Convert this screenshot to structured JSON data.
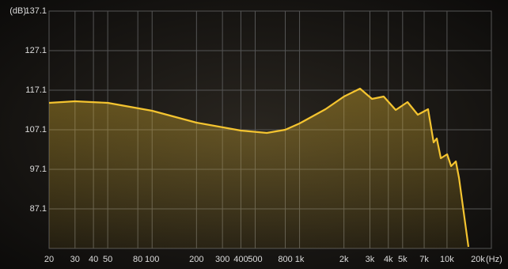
{
  "chart_data": {
    "type": "line",
    "y_unit": "(dB)",
    "x_unit": "(Hz)",
    "log_x": true,
    "grid": true,
    "xlim": [
      20,
      20000
    ],
    "ylim": [
      77.1,
      137.1
    ],
    "yticks": [
      87.1,
      97.1,
      107.1,
      117.1,
      127.1,
      137.1
    ],
    "xticks": [
      20,
      30,
      40,
      50,
      80,
      100,
      200,
      300,
      400,
      500,
      800,
      {
        "value": 1000,
        "label": "1k"
      },
      {
        "value": 2000,
        "label": "2k"
      },
      {
        "value": 3000,
        "label": "3k"
      },
      {
        "value": 4000,
        "label": "4k"
      },
      {
        "value": 5000,
        "label": "5k"
      },
      {
        "value": 7000,
        "label": "7k"
      },
      {
        "value": 10000,
        "label": "10k"
      },
      {
        "value": 20000,
        "label": "20k"
      }
    ],
    "x": [
      20,
      30,
      50,
      100,
      200,
      400,
      600,
      800,
      1000,
      1500,
      2000,
      2570,
      3100,
      3720,
      4490,
      5400,
      6340,
      7440,
      8110,
      8530,
      9080,
      10020,
      10660,
      11480,
      12060,
      13980
    ],
    "series": [
      {
        "color": "#f4c430",
        "values": [
          113.9,
          114.3,
          113.9,
          111.9,
          108.9,
          106.9,
          106.3,
          107.1,
          108.7,
          112.3,
          115.5,
          117.5,
          114.9,
          115.5,
          112.1,
          114.1,
          110.9,
          112.3,
          103.9,
          104.9,
          99.9,
          100.9,
          97.9,
          99.1,
          94.9,
          77.5
        ]
      }
    ]
  }
}
